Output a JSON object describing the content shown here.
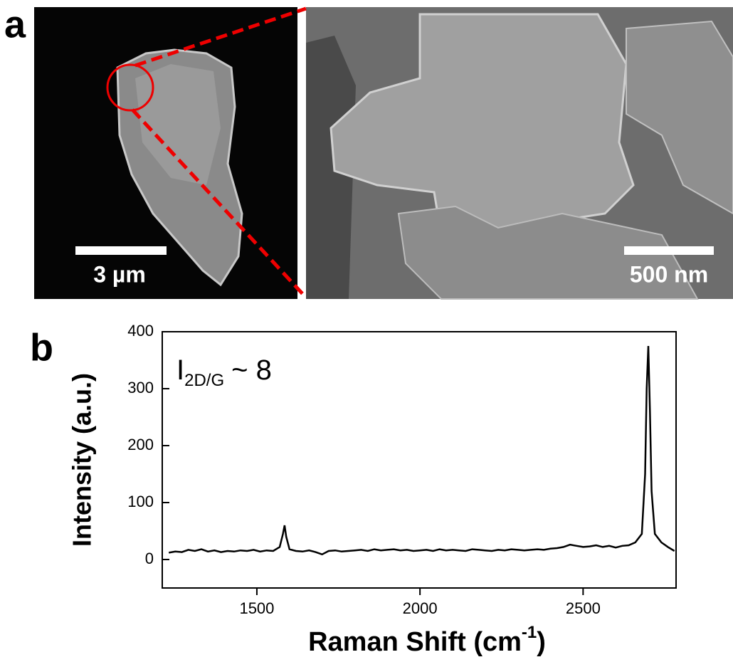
{
  "panel_a": {
    "label": "a",
    "left_scale": "3 µm",
    "right_scale": "500 nm"
  },
  "panel_b_label": "b",
  "chart_data": {
    "type": "line",
    "x_label": "Raman Shift (cm",
    "x_label_sup": "-1",
    "x_label_end": ")",
    "y_label": "Intensity (a.u.)",
    "annotation": {
      "main": "I",
      "sub": "2D/G",
      "rest": "~ 8"
    },
    "xlim": [
      1210,
      2785
    ],
    "ylim": [
      -50,
      400
    ],
    "xticks": [
      1500,
      2000,
      2500
    ],
    "yticks": [
      0,
      100,
      200,
      300,
      400
    ],
    "color": "#000000",
    "x": [
      1230,
      1250,
      1270,
      1290,
      1310,
      1330,
      1350,
      1370,
      1390,
      1410,
      1430,
      1450,
      1470,
      1490,
      1510,
      1530,
      1550,
      1570,
      1580,
      1585,
      1590,
      1600,
      1620,
      1640,
      1660,
      1680,
      1700,
      1720,
      1740,
      1760,
      1780,
      1800,
      1820,
      1840,
      1860,
      1880,
      1900,
      1920,
      1940,
      1960,
      1980,
      2000,
      2020,
      2040,
      2060,
      2080,
      2100,
      2120,
      2140,
      2160,
      2180,
      2200,
      2220,
      2240,
      2260,
      2280,
      2300,
      2320,
      2340,
      2360,
      2380,
      2400,
      2420,
      2440,
      2460,
      2480,
      2500,
      2520,
      2540,
      2560,
      2580,
      2600,
      2620,
      2640,
      2660,
      2680,
      2690,
      2695,
      2700,
      2705,
      2710,
      2720,
      2740,
      2760,
      2780
    ],
    "values": [
      12,
      14,
      13,
      17,
      15,
      18,
      14,
      16,
      13,
      15,
      14,
      16,
      15,
      17,
      14,
      16,
      15,
      22,
      45,
      60,
      40,
      18,
      15,
      14,
      16,
      13,
      9,
      15,
      16,
      14,
      15,
      16,
      17,
      15,
      18,
      16,
      17,
      18,
      16,
      17,
      15,
      16,
      17,
      15,
      18,
      16,
      17,
      16,
      15,
      18,
      17,
      16,
      15,
      17,
      16,
      18,
      17,
      16,
      17,
      18,
      17,
      19,
      20,
      22,
      26,
      24,
      22,
      23,
      25,
      22,
      24,
      21,
      24,
      25,
      30,
      45,
      150,
      300,
      375,
      260,
      120,
      45,
      30,
      22,
      15
    ]
  }
}
